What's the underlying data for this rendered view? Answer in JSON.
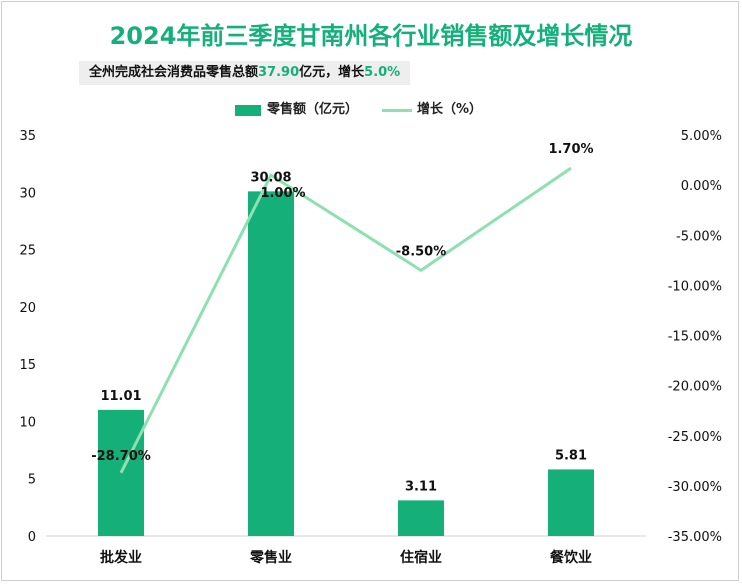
{
  "title": "2024年前三季度甘南州各行业销售额及增长情况",
  "subtitle": {
    "prefix": "全州完成社会消费品零售总额",
    "total": "37.90",
    "middle": "亿元，增长",
    "growth": "5.0%"
  },
  "colors": {
    "bar": "#15b07a",
    "line": "#8ee0b0",
    "title": "#15b07a"
  },
  "chart_data": {
    "type": "bar",
    "categories": [
      "批发业",
      "零售业",
      "住宿业",
      "餐饮业"
    ],
    "series": [
      {
        "name": "零售额（亿元）",
        "type": "bar",
        "axis": "left",
        "values": [
          11.01,
          30.08,
          3.11,
          5.81
        ],
        "labels": [
          "11.01",
          "30.08",
          "3.11",
          "5.81"
        ]
      },
      {
        "name": "增长（%）",
        "type": "line",
        "axis": "right",
        "values": [
          -28.7,
          1.0,
          -8.5,
          1.7
        ],
        "labels": [
          "-28.70%",
          "1.00%",
          "-8.50%",
          "1.70%"
        ]
      }
    ],
    "left_axis": {
      "min": 0,
      "max": 35,
      "ticks": [
        0,
        5,
        10,
        15,
        20,
        25,
        30,
        35
      ],
      "tick_labels": [
        "0",
        "5",
        "10",
        "15",
        "20",
        "25",
        "30",
        "35"
      ]
    },
    "right_axis": {
      "min": -35,
      "max": 5,
      "ticks": [
        -35,
        -30,
        -25,
        -20,
        -15,
        -10,
        -5,
        0,
        5
      ],
      "tick_labels": [
        "-35.00%",
        "-30.00%",
        "-25.00%",
        "-20.00%",
        "-15.00%",
        "-10.00%",
        "-5.00%",
        "0.00%",
        "5.00%"
      ]
    },
    "legend_position": "top-center",
    "grid": false
  }
}
